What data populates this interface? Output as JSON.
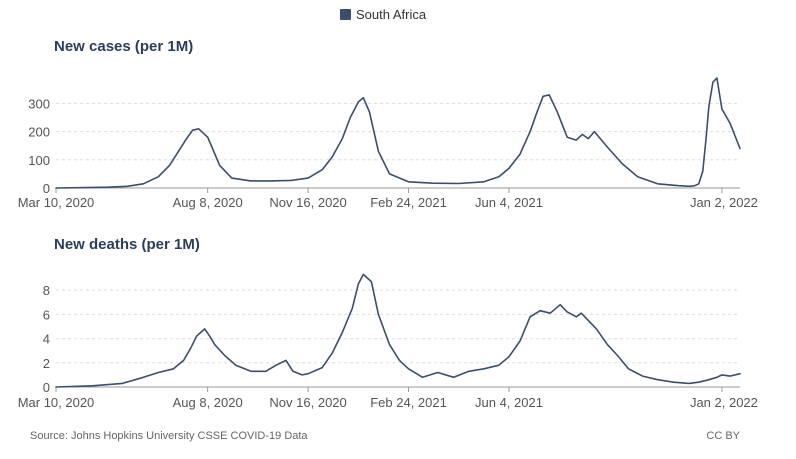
{
  "legend": {
    "label": "South Africa",
    "color": "#3b4e6b"
  },
  "footer": {
    "source": "Source: Johns Hopkins University CSSE COVID-19 Data",
    "license": "CC BY"
  },
  "chart_data": [
    {
      "type": "line",
      "title": "New cases (per 1M)",
      "xlabel": "",
      "ylabel": "",
      "x_tick_labels": [
        "Mar 10, 2020",
        "Aug 8, 2020",
        "Nov 16, 2020",
        "Feb 24, 2021",
        "Jun 4, 2021",
        "Jan 2, 2022"
      ],
      "x_ticks": [
        "2020-03-10",
        "2020-08-08",
        "2020-11-16",
        "2021-02-24",
        "2021-06-04",
        "2022-01-02"
      ],
      "x_range": [
        "2020-03-10",
        "2022-01-20"
      ],
      "y_ticks": [
        0,
        100,
        200,
        300
      ],
      "ylim": [
        0,
        390
      ],
      "grid": true,
      "legend_position": "top-center",
      "series": [
        {
          "name": "South Africa",
          "color": "#3b4e6b",
          "x": [
            "2020-03-10",
            "2020-04-01",
            "2020-05-01",
            "2020-05-20",
            "2020-06-05",
            "2020-06-20",
            "2020-07-01",
            "2020-07-10",
            "2020-07-18",
            "2020-07-24",
            "2020-07-30",
            "2020-08-08",
            "2020-08-20",
            "2020-09-01",
            "2020-09-20",
            "2020-10-10",
            "2020-10-30",
            "2020-11-16",
            "2020-11-30",
            "2020-12-10",
            "2020-12-20",
            "2020-12-28",
            "2021-01-05",
            "2021-01-10",
            "2021-01-16",
            "2021-01-25",
            "2021-02-05",
            "2021-02-24",
            "2021-03-20",
            "2021-04-15",
            "2021-05-10",
            "2021-05-25",
            "2021-06-04",
            "2021-06-15",
            "2021-06-25",
            "2021-07-02",
            "2021-07-08",
            "2021-07-14",
            "2021-07-22",
            "2021-08-01",
            "2021-08-10",
            "2021-08-16",
            "2021-08-22",
            "2021-08-28",
            "2021-09-10",
            "2021-09-25",
            "2021-10-10",
            "2021-10-30",
            "2021-11-20",
            "2021-12-01",
            "2021-12-06",
            "2021-12-10",
            "2021-12-14",
            "2021-12-17",
            "2021-12-20",
            "2021-12-24",
            "2021-12-28",
            "2022-01-02",
            "2022-01-10",
            "2022-01-20"
          ],
          "y": [
            0,
            1,
            3,
            6,
            15,
            40,
            80,
            130,
            175,
            205,
            210,
            180,
            80,
            35,
            25,
            25,
            27,
            35,
            65,
            110,
            175,
            250,
            305,
            320,
            270,
            130,
            50,
            22,
            17,
            16,
            22,
            40,
            70,
            120,
            200,
            270,
            325,
            330,
            270,
            180,
            170,
            190,
            175,
            200,
            145,
            85,
            40,
            15,
            8,
            6,
            8,
            15,
            60,
            170,
            290,
            375,
            390,
            280,
            230,
            140
          ]
        }
      ]
    },
    {
      "type": "line",
      "title": "New deaths (per 1M)",
      "xlabel": "",
      "ylabel": "",
      "x_tick_labels": [
        "Mar 10, 2020",
        "Aug 8, 2020",
        "Nov 16, 2020",
        "Feb 24, 2021",
        "Jun 4, 2021",
        "Jan 2, 2022"
      ],
      "x_ticks": [
        "2020-03-10",
        "2020-08-08",
        "2020-11-16",
        "2021-02-24",
        "2021-06-04",
        "2022-01-02"
      ],
      "x_range": [
        "2020-03-10",
        "2022-01-20"
      ],
      "y_ticks": [
        0,
        2,
        4,
        6,
        8
      ],
      "ylim": [
        0,
        9.5
      ],
      "grid": true,
      "legend_position": "top-center",
      "series": [
        {
          "name": "South Africa",
          "color": "#3b4e6b",
          "x": [
            "2020-03-10",
            "2020-04-15",
            "2020-05-15",
            "2020-06-05",
            "2020-06-20",
            "2020-07-05",
            "2020-07-15",
            "2020-07-22",
            "2020-07-28",
            "2020-08-01",
            "2020-08-05",
            "2020-08-10",
            "2020-08-15",
            "2020-08-25",
            "2020-09-05",
            "2020-09-20",
            "2020-10-05",
            "2020-10-15",
            "2020-10-25",
            "2020-11-01",
            "2020-11-10",
            "2020-11-16",
            "2020-11-30",
            "2020-12-10",
            "2020-12-20",
            "2020-12-30",
            "2021-01-05",
            "2021-01-10",
            "2021-01-14",
            "2021-01-18",
            "2021-01-25",
            "2021-02-05",
            "2021-02-15",
            "2021-02-24",
            "2021-03-10",
            "2021-03-25",
            "2021-04-10",
            "2021-04-25",
            "2021-05-10",
            "2021-05-25",
            "2021-06-04",
            "2021-06-15",
            "2021-06-25",
            "2021-07-05",
            "2021-07-15",
            "2021-07-25",
            "2021-08-01",
            "2021-08-10",
            "2021-08-15",
            "2021-08-22",
            "2021-08-30",
            "2021-09-10",
            "2021-09-20",
            "2021-10-01",
            "2021-10-15",
            "2021-10-30",
            "2021-11-15",
            "2021-11-30",
            "2021-12-10",
            "2021-12-20",
            "2021-12-28",
            "2022-01-02",
            "2022-01-10",
            "2022-01-20"
          ],
          "y": [
            0,
            0.1,
            0.3,
            0.8,
            1.2,
            1.5,
            2.2,
            3.2,
            4.2,
            4.5,
            4.8,
            4.2,
            3.5,
            2.6,
            1.8,
            1.3,
            1.3,
            1.8,
            2.2,
            1.3,
            1.0,
            1.1,
            1.6,
            2.8,
            4.5,
            6.5,
            8.5,
            9.3,
            9.0,
            8.7,
            6.0,
            3.5,
            2.2,
            1.5,
            0.8,
            1.2,
            0.8,
            1.3,
            1.5,
            1.8,
            2.5,
            3.8,
            5.8,
            6.3,
            6.1,
            6.8,
            6.2,
            5.8,
            6.1,
            5.5,
            4.8,
            3.5,
            2.6,
            1.5,
            0.9,
            0.6,
            0.4,
            0.3,
            0.4,
            0.6,
            0.8,
            1.0,
            0.9,
            1.1
          ]
        }
      ]
    }
  ]
}
